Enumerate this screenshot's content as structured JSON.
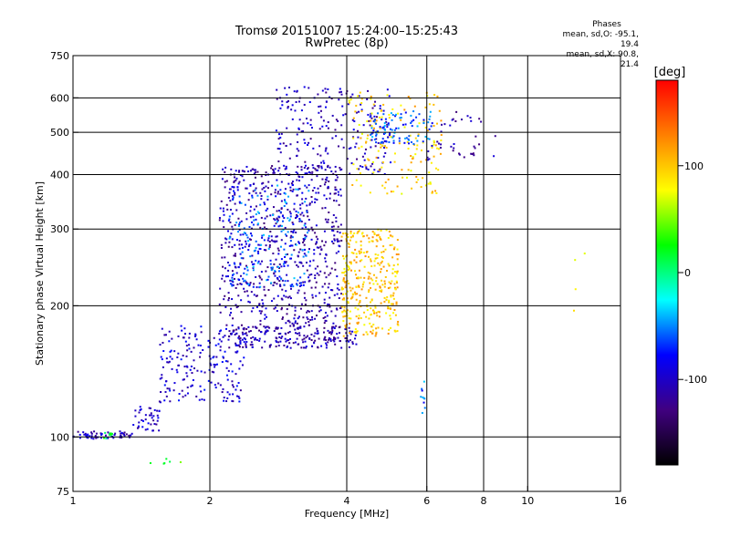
{
  "title": {
    "line1": "Tromsø 20151007 15:24:00–15:25:43",
    "line2": "RwPretec (8p)"
  },
  "stats": {
    "header": "Phases",
    "line_o": "mean, sd,O: -95.1, 19.4",
    "line_x": "mean, sd,X:  90.8, 21.4"
  },
  "colorbar": {
    "label": "[deg]",
    "ticks": [
      "100",
      "0",
      "-100"
    ],
    "tick_values": [
      100,
      0,
      -100
    ],
    "range": [
      -180,
      180
    ],
    "colors": [
      "#ff0000",
      "#ff8000",
      "#ffff00",
      "#00ff00",
      "#00ffff",
      "#0000ff",
      "#400080",
      "#000000"
    ]
  },
  "chart_data": {
    "type": "scatter",
    "title": "Tromsø 20151007 15:24:00–15:25:43",
    "subtitle": "RwPretec (8p)",
    "xlabel": "Frequency [MHz]",
    "ylabel": "Stationary phase Virtual Height [km]",
    "xscale": "log",
    "yscale": "log",
    "xlim": [
      1,
      16
    ],
    "ylim": [
      75,
      750
    ],
    "grid": true,
    "x_ticks": [
      1,
      2,
      4,
      6,
      8,
      10,
      16
    ],
    "x_tick_labels": [
      "1",
      "2",
      "4",
      "6",
      "8",
      "10",
      "16"
    ],
    "y_ticks": [
      75,
      100,
      200,
      300,
      400,
      500,
      600,
      750
    ],
    "y_tick_labels": [
      "75",
      "100",
      "200",
      "300",
      "400",
      "500",
      "600",
      "750"
    ],
    "x_grid": [
      2,
      4,
      6,
      8,
      10
    ],
    "y_grid": [
      100,
      200,
      300,
      400,
      500,
      600
    ],
    "color_scale": "phase [deg], -180 to 180",
    "clusters": [
      {
        "name": "low E trace",
        "f": [
          1.0,
          1.35
        ],
        "h": [
          99,
          103
        ],
        "phase": -105,
        "n": 60
      },
      {
        "name": "E rise",
        "f": [
          1.35,
          1.55
        ],
        "h": [
          103,
          118
        ],
        "phase": -100,
        "n": 40
      },
      {
        "name": "green spot",
        "f": [
          1.17,
          1.22
        ],
        "h": [
          99,
          103
        ],
        "phase": 10,
        "n": 10
      },
      {
        "name": "F1 low trace",
        "f": [
          1.55,
          2.4
        ],
        "h": [
          120,
          180
        ],
        "phase": -95,
        "n": 200
      },
      {
        "name": "F1 ledge",
        "f": [
          2.2,
          4.2
        ],
        "h": [
          160,
          180
        ],
        "phase": -110,
        "n": 220
      },
      {
        "name": "F2 O cloud",
        "f": [
          2.1,
          3.9
        ],
        "h": [
          180,
          420
        ],
        "phase": -110,
        "n": 700
      },
      {
        "name": "F2 O cyan",
        "f": [
          2.2,
          3.3
        ],
        "h": [
          220,
          380
        ],
        "phase": -60,
        "n": 200
      },
      {
        "name": "F2 O upper",
        "f": [
          2.8,
          5.0
        ],
        "h": [
          400,
          640
        ],
        "phase": -105,
        "n": 220
      },
      {
        "name": "X trace cloud",
        "f": [
          3.9,
          5.2
        ],
        "h": [
          170,
          300
        ],
        "phase": 100,
        "n": 350
      },
      {
        "name": "X upper",
        "f": [
          4.0,
          6.5
        ],
        "h": [
          360,
          620
        ],
        "phase": 95,
        "n": 160
      },
      {
        "name": "F2 upper cyan",
        "f": [
          4.5,
          6.2
        ],
        "h": [
          470,
          560
        ],
        "phase": -60,
        "n": 100
      },
      {
        "name": "upper tail",
        "f": [
          6.0,
          8.5
        ],
        "h": [
          430,
          560
        ],
        "phase": -110,
        "n": 40
      },
      {
        "name": "stray low",
        "f": [
          1.45,
          1.85
        ],
        "h": [
          85,
          92
        ],
        "phase": 30,
        "n": 6
      },
      {
        "name": "column 5.9",
        "f": [
          5.8,
          5.95
        ],
        "h": [
          105,
          135
        ],
        "phase": -60,
        "n": 10
      },
      {
        "name": "stray high f",
        "f": [
          12,
          13.5
        ],
        "h": [
          185,
          270
        ],
        "phase": 90,
        "n": 4
      }
    ]
  }
}
